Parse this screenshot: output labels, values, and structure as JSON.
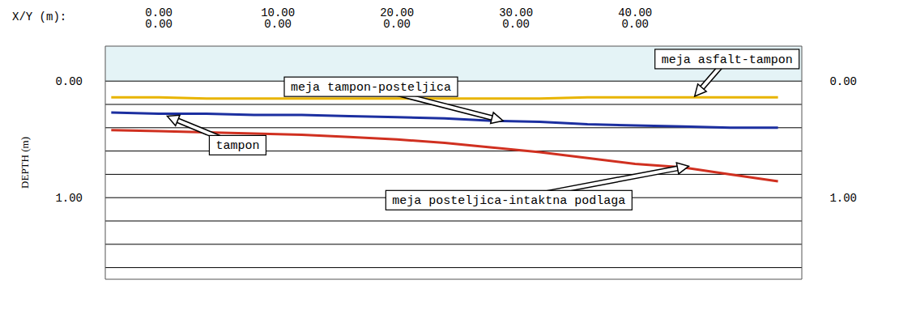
{
  "chart_data": {
    "type": "line",
    "x_label": "X/Y (m):",
    "y_label": "DEPTH (m)",
    "xlim": [
      -4.5,
      54
    ],
    "xticks": [
      {
        "value": 0,
        "label": "0.00"
      },
      {
        "value": 10,
        "label": "10.00"
      },
      {
        "value": 20,
        "label": "20.00"
      },
      {
        "value": 30,
        "label": "30.00"
      },
      {
        "value": 40,
        "label": "40.00"
      }
    ],
    "y_coordinate_labels": [
      "0.00",
      "0.00",
      "0.00",
      "0.00",
      "0.00"
    ],
    "ylim": [
      -0.3,
      1.7
    ],
    "yticks": [
      {
        "value": 0,
        "label": "0.00"
      },
      {
        "value": 1,
        "label": "1.00"
      }
    ],
    "grid": true,
    "grid_lines": [
      0,
      0.2,
      0.4,
      0.6,
      0.8,
      1.0,
      1.2,
      1.4,
      1.6
    ],
    "x": [
      -4,
      0,
      4,
      8,
      12,
      16,
      20,
      24,
      28,
      32,
      36,
      40,
      44,
      48,
      52
    ],
    "series": [
      {
        "color": "#e8b400",
        "values": [
          0.14,
          0.14,
          0.15,
          0.15,
          0.15,
          0.15,
          0.15,
          0.15,
          0.15,
          0.15,
          0.14,
          0.14,
          0.14,
          0.14,
          0.14
        ]
      },
      {
        "color": "#1c2fa0",
        "values": [
          0.27,
          0.28,
          0.28,
          0.29,
          0.29,
          0.3,
          0.31,
          0.32,
          0.34,
          0.35,
          0.37,
          0.38,
          0.39,
          0.4,
          0.4
        ]
      },
      {
        "color": "#d03020",
        "values": [
          0.42,
          0.43,
          0.44,
          0.45,
          0.46,
          0.48,
          0.5,
          0.53,
          0.57,
          0.61,
          0.66,
          0.71,
          0.74,
          0.8,
          0.86
        ]
      }
    ],
    "annotations": [
      {
        "text": "tampon",
        "x": 0.7,
        "y": 0.3
      },
      {
        "text": "meja tampon-posteljica",
        "x": 28.9,
        "y": 0.34
      },
      {
        "text": "meja asfalt-tampon",
        "x": 45,
        "y": 0.13
      },
      {
        "text": "meja posteljica-intaktna podlaga",
        "x": 44.5,
        "y": 0.73
      }
    ]
  }
}
